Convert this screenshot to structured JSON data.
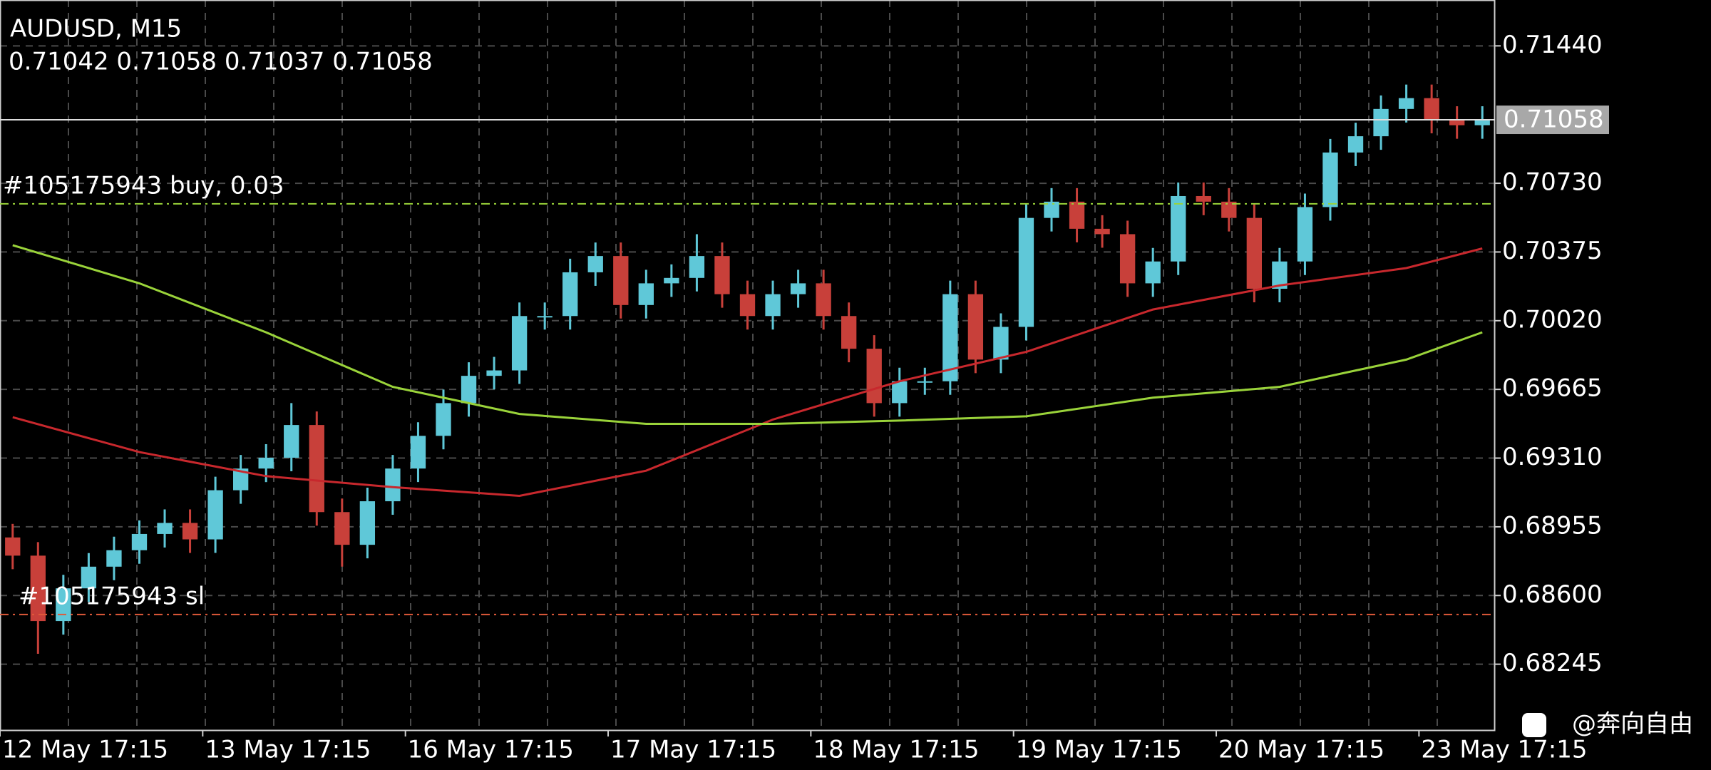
{
  "chart_data": {
    "type": "candlestick",
    "title": "AUDUSD, M15",
    "subtitle": "0.71042 0.71058 0.71037 0.71058",
    "up_color": "#5fc8d8",
    "down_color": "#c8403a",
    "open": [
      0.689,
      0.68806,
      0.68468,
      0.68637,
      0.68749,
      0.68834,
      0.68918,
      0.68975,
      0.6889,
      0.69144,
      0.69256,
      0.69312,
      0.69481,
      0.69031,
      0.68862,
      0.69087,
      0.69256,
      0.69425,
      0.69594,
      0.69735,
      0.69763,
      0.70044,
      0.70044,
      0.7027,
      0.70354,
      0.70101,
      0.70213,
      0.70241,
      0.70354,
      0.70157,
      0.70044,
      0.70157,
      0.70213,
      0.70044,
      0.69875,
      0.69594,
      0.69707,
      0.69707,
      0.70157,
      0.69819,
      0.69988,
      0.70551,
      0.70635,
      0.70495,
      0.70467,
      0.70213,
      0.70326,
      0.70664,
      0.70635,
      0.70551,
      0.70185,
      0.70326,
      0.70607,
      0.70889,
      0.70973,
      0.71114,
      0.7117,
      0.71058,
      0.7103
    ],
    "high": [
      0.6897,
      0.68876,
      0.68707,
      0.68819,
      0.68904,
      0.68988,
      0.69045,
      0.69045,
      0.69214,
      0.69326,
      0.69382,
      0.69594,
      0.69551,
      0.69101,
      0.69157,
      0.69326,
      0.69495,
      0.69664,
      0.69805,
      0.69833,
      0.70114,
      0.70114,
      0.7034,
      0.70424,
      0.70424,
      0.70283,
      0.70311,
      0.70467,
      0.70424,
      0.70227,
      0.70227,
      0.70283,
      0.70283,
      0.70114,
      0.69945,
      0.69777,
      0.69777,
      0.70227,
      0.70227,
      0.70058,
      0.70621,
      0.70705,
      0.70705,
      0.70565,
      0.70537,
      0.70396,
      0.70734,
      0.70734,
      0.70705,
      0.70621,
      0.70396,
      0.70677,
      0.70959,
      0.71043,
      0.71184,
      0.7124,
      0.7124,
      0.71128,
      0.71128
    ],
    "low": [
      0.68736,
      0.68299,
      0.68398,
      0.68567,
      0.68679,
      0.68764,
      0.68848,
      0.6882,
      0.6882,
      0.69074,
      0.69186,
      0.69242,
      0.68961,
      0.68749,
      0.68792,
      0.69017,
      0.69186,
      0.69355,
      0.69524,
      0.69665,
      0.69693,
      0.69974,
      0.69974,
      0.702,
      0.70031,
      0.70031,
      0.70143,
      0.70171,
      0.70087,
      0.69974,
      0.69974,
      0.70087,
      0.69974,
      0.69805,
      0.69524,
      0.69524,
      0.69637,
      0.69637,
      0.69749,
      0.69749,
      0.69918,
      0.70481,
      0.70425,
      0.70397,
      0.70143,
      0.70143,
      0.70256,
      0.70565,
      0.70481,
      0.70115,
      0.70115,
      0.70256,
      0.70537,
      0.70819,
      0.70903,
      0.71044,
      0.70988,
      0.7096,
      0.7096
    ],
    "close": [
      0.68806,
      0.68468,
      0.68637,
      0.68749,
      0.68834,
      0.68918,
      0.68975,
      0.6889,
      0.69144,
      0.69256,
      0.69312,
      0.69481,
      0.69031,
      0.68862,
      0.69087,
      0.69256,
      0.69425,
      0.69594,
      0.69735,
      0.69763,
      0.70044,
      0.70044,
      0.7027,
      0.70354,
      0.70101,
      0.70213,
      0.70241,
      0.70354,
      0.70157,
      0.70044,
      0.70157,
      0.70213,
      0.70044,
      0.69875,
      0.69594,
      0.69707,
      0.69707,
      0.70157,
      0.69819,
      0.69988,
      0.70551,
      0.70635,
      0.70495,
      0.70467,
      0.70213,
      0.70326,
      0.70664,
      0.70635,
      0.70551,
      0.70185,
      0.70326,
      0.70607,
      0.70889,
      0.70973,
      0.71114,
      0.7117,
      0.71058,
      0.7103,
      0.71058
    ],
    "overlays": [
      {
        "color": "#c8282d",
        "x": [
          0,
          5,
          10,
          15,
          20,
          25,
          30,
          35,
          40,
          45,
          50,
          55,
          58
        ],
        "values": [
          0.69521,
          0.69341,
          0.69217,
          0.6916,
          0.69115,
          0.69245,
          0.69509,
          0.69707,
          0.69859,
          0.70078,
          0.70202,
          0.70292,
          0.70393
        ]
      },
      {
        "color": "#9ad33a",
        "x": [
          0,
          5,
          10,
          15,
          20,
          25,
          30,
          35,
          40,
          45,
          50,
          55,
          58
        ],
        "values": [
          0.7041,
          0.70213,
          0.6996,
          0.69678,
          0.69538,
          0.69487,
          0.69487,
          0.69504,
          0.69526,
          0.69622,
          0.69678,
          0.69819,
          0.6996
        ]
      }
    ],
    "hlines": [
      {
        "value": 0.71058,
        "label": "0.71058",
        "color": "#dddddd",
        "style": "solid"
      },
      {
        "value": 0.70624,
        "label": "#105175943 buy, 0.03",
        "color": "#9ad33a",
        "style": "dashdot"
      },
      {
        "value": 0.68502,
        "label": "#105175943 sl",
        "color": "#e05a3a",
        "style": "dashdot"
      }
    ],
    "xlim": [
      -0.5,
      58.5
    ],
    "xticks": [
      {
        "value": -0.5,
        "label": "12 May 17:15"
      },
      {
        "value": 7.5,
        "label": "13 May 17:15"
      },
      {
        "value": 15.5,
        "label": "16 May 17:15"
      },
      {
        "value": 23.5,
        "label": "17 May 17:15"
      },
      {
        "value": 31.5,
        "label": "18 May 17:15"
      },
      {
        "value": 39.5,
        "label": "19 May 17:15"
      },
      {
        "value": 47.5,
        "label": "20 May 17:15"
      },
      {
        "value": 55.5,
        "label": "23 May 17:15"
      }
    ],
    "ylim": [
      0.67901,
      0.71677
    ],
    "yticks": [
      {
        "value": 0.7144,
        "label": "0.71440"
      },
      {
        "value": 0.7073,
        "label": "0.70730"
      },
      {
        "value": 0.70375,
        "label": "0.70375"
      },
      {
        "value": 0.7002,
        "label": "0.70020"
      },
      {
        "value": 0.69665,
        "label": "0.69665"
      },
      {
        "value": 0.6931,
        "label": "0.69310"
      },
      {
        "value": 0.68955,
        "label": "0.68955"
      },
      {
        "value": 0.686,
        "label": "0.68600"
      },
      {
        "value": 0.68245,
        "label": "0.68245"
      }
    ],
    "grid": true
  },
  "watermark": "@奔向自由"
}
